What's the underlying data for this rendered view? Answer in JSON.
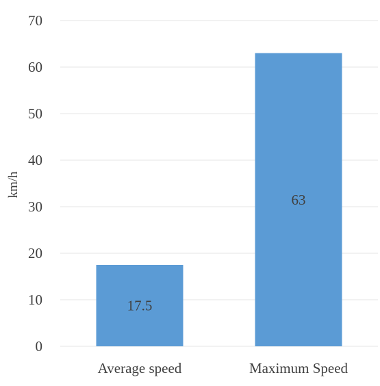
{
  "chart_data": {
    "type": "bar",
    "title": "",
    "xlabel": "",
    "ylabel": "km/h",
    "categories": [
      "Average speed",
      "Maximum Speed"
    ],
    "values": [
      17.5,
      63
    ],
    "data_labels": [
      "17.5",
      "63"
    ],
    "ylim": [
      0,
      70
    ],
    "yticks": [
      0,
      10,
      20,
      30,
      40,
      50,
      60,
      70
    ],
    "grid": true,
    "legend": "none",
    "bar_color": "#5b9bd5",
    "grid_color": "#e6e6e6"
  }
}
